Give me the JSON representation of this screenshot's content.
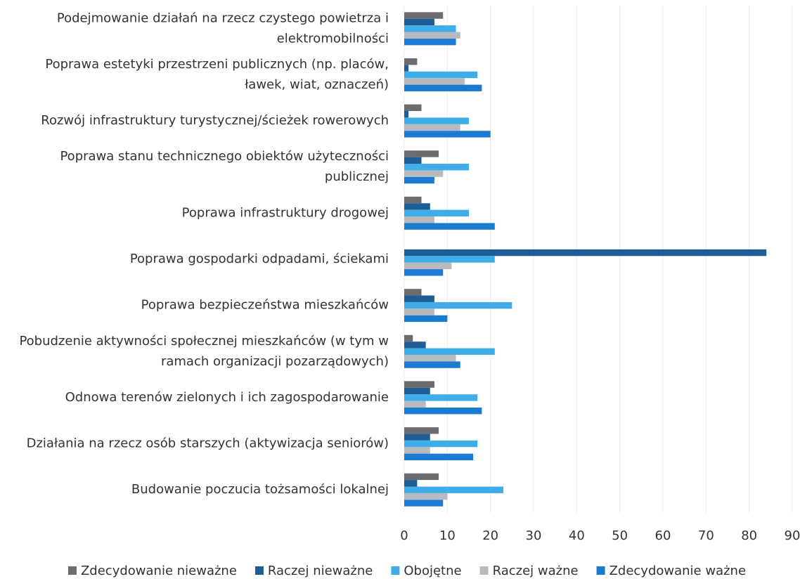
{
  "chart_data": {
    "type": "bar",
    "orientation": "horizontal",
    "categories": [
      [
        "Podejmowanie działań na rzecz czystego powietrza i",
        "elektromobilności"
      ],
      [
        "Poprawa estetyki przestrzeni publicznych (np. placów,",
        "ławek, wiat, oznaczeń)"
      ],
      [
        "Rozwój infrastruktury turystycznej/ścieżek rowerowych"
      ],
      [
        "Poprawa stanu technicznego obiektów użyteczności",
        "publicznej"
      ],
      [
        "Poprawa infrastruktury drogowej"
      ],
      [
        "Poprawa gospodarki odpadami, ściekami"
      ],
      [
        "Poprawa bezpieczeństwa mieszkańców"
      ],
      [
        "Pobudzenie aktywności społecznej mieszkańców (w tym w",
        "ramach organizacji pozarządowych)"
      ],
      [
        "Odnowa terenów zielonych i ich zagospodarowanie"
      ],
      [
        "Działania na rzecz osób starszych (aktywizacja seniorów)"
      ],
      [
        "Budowanie poczucia tożsamości lokalnej"
      ]
    ],
    "series": [
      {
        "name": "Zdecydowanie nieważne",
        "color": "#6b6c70",
        "values": [
          9,
          3,
          4,
          8,
          4,
          0,
          4,
          2,
          7,
          8,
          8
        ]
      },
      {
        "name": "Raczej nieważne",
        "color": "#1f5d96",
        "values": [
          7,
          1,
          1,
          4,
          6,
          84,
          7,
          5,
          6,
          6,
          3
        ]
      },
      {
        "name": "Obojętne",
        "color": "#3fade8",
        "values": [
          12,
          17,
          15,
          15,
          15,
          21,
          25,
          21,
          17,
          17,
          23
        ]
      },
      {
        "name": "Raczej ważne",
        "color": "#b9b9c0",
        "values": [
          13,
          14,
          13,
          9,
          7,
          11,
          7,
          12,
          5,
          6,
          10
        ]
      },
      {
        "name": "Zdecydowanie ważne",
        "color": "#1b7bd2",
        "values": [
          12,
          18,
          20,
          7,
          21,
          9,
          10,
          13,
          18,
          16,
          9
        ]
      }
    ],
    "xlim": [
      0,
      90
    ],
    "xticks": [
      0,
      10,
      20,
      30,
      40,
      50,
      60,
      70,
      80,
      90
    ],
    "grid": true,
    "legend": "bottom"
  }
}
